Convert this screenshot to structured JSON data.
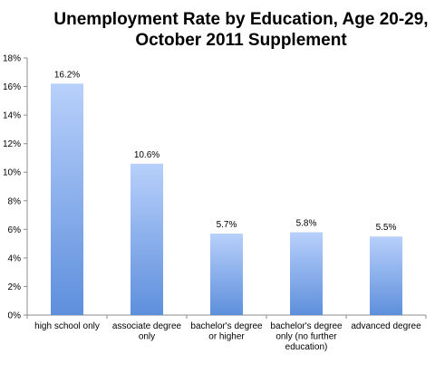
{
  "chart_data": {
    "type": "bar",
    "title_lines": [
      "Unemployment Rate by Education, Age 20-29,",
      "October 2011 Supplement"
    ],
    "categories": [
      [
        "high school only"
      ],
      [
        "associate degree",
        "only"
      ],
      [
        "bachelor's degree",
        "or higher"
      ],
      [
        "bachelor's degree",
        "only (no further",
        "education)"
      ],
      [
        "advanced degree"
      ]
    ],
    "values": [
      16.2,
      10.6,
      5.7,
      5.8,
      5.5
    ],
    "data_labels": [
      "16.2%",
      "10.6%",
      "5.7%",
      "5.8%",
      "5.5%"
    ],
    "ylim": [
      0,
      18
    ],
    "yticks": [
      0,
      2,
      4,
      6,
      8,
      10,
      12,
      14,
      16,
      18
    ],
    "ytick_labels": [
      "0%",
      "2%",
      "4%",
      "6%",
      "8%",
      "10%",
      "12%",
      "14%",
      "16%",
      "18%"
    ],
    "xlabel": "",
    "ylabel": "",
    "grid": false,
    "legend": "none",
    "colors": {
      "bar_top": "#b8d0fb",
      "bar_bottom": "#5e8fdc",
      "axis": "#8c8c8c"
    }
  }
}
